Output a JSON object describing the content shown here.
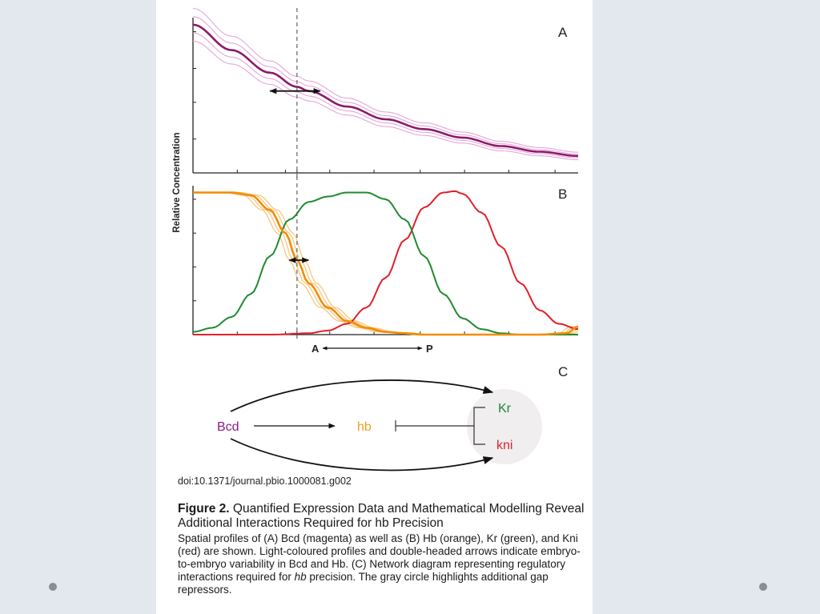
{
  "slide": {
    "background": "#e3e8ee",
    "nav_dots": [
      "left",
      "right"
    ]
  },
  "figure": {
    "doi": "doi:10.1371/journal.pbio.1000081.g002",
    "caption": {
      "label": "Figure 2.",
      "title": "Quantified Expression Data and Mathematical Modelling Reveal Additional Interactions Required for hb Precision",
      "body_parts": [
        "Spatial profiles of (A) Bcd (magenta) as well as (B) Hb (orange), Kr (green), and Kni (red) are shown. Light-coloured profiles and double-headed arrows indicate embryo-to-embryo variability in Bcd and Hb. (C) Network diagram representing regulatory interactions required for ",
        "hb",
        " precision. The gray circle highlights additional gap repressors."
      ]
    },
    "diagram_c": {
      "panel_label": "C",
      "nodes": {
        "bcd": {
          "label": "Bcd",
          "color": "#8b1a8b"
        },
        "hb": {
          "label": "hb",
          "color": "#f0a020"
        },
        "kr": {
          "label": "Kr",
          "color": "#1f8a2e"
        },
        "kni": {
          "label": "kni",
          "color": "#e0202a"
        }
      },
      "edges": [
        {
          "from": "Bcd",
          "to": "hb",
          "type": "activation"
        },
        {
          "from": "Bcd",
          "to": "Kr",
          "type": "activation"
        },
        {
          "from": "Bcd",
          "to": "kni",
          "type": "activation"
        },
        {
          "from": "Kr/kni",
          "to": "hb",
          "type": "repression"
        }
      ],
      "highlight": "gray circle around Kr and kni"
    }
  },
  "chart_data": [
    {
      "type": "line",
      "panel_label": "A",
      "title": "",
      "xlabel": "",
      "ylabel": "Relative Concentration",
      "xlim": [
        0,
        1
      ],
      "ylim": [
        0,
        1.1
      ],
      "grid": false,
      "x_ticks": [
        0,
        0.115,
        0.24,
        0.27,
        0.355,
        0.47,
        0.59,
        0.705,
        0.82,
        0.94
      ],
      "y_ticks": [
        0.24,
        0.5,
        0.74,
        1.0
      ],
      "reference_line_x": 0.27,
      "variability_arrow": {
        "y": 0.58,
        "x_from": 0.2,
        "x_to": 0.33
      },
      "series": [
        {
          "name": "Bcd",
          "color": "#8b1a6b",
          "model": "exponential",
          "x": [
            0,
            0.1,
            0.2,
            0.27,
            0.3,
            0.4,
            0.5,
            0.6,
            0.7,
            0.8,
            0.9,
            1.0
          ],
          "y": [
            1.05,
            0.87,
            0.71,
            0.61,
            0.58,
            0.47,
            0.38,
            0.31,
            0.25,
            0.19,
            0.15,
            0.12
          ]
        },
        {
          "name": "Bcd (embryo variability)",
          "color": "#e4a6d8",
          "x": [
            0,
            1
          ],
          "y": [
            1.05,
            0.12
          ],
          "band": [
            -0.06,
            -0.03,
            0.03,
            0.06
          ]
        }
      ]
    },
    {
      "type": "line",
      "panel_label": "B",
      "title": "",
      "xlabel": "",
      "ylabel": "Relative Concentration",
      "xlim": [
        0,
        1
      ],
      "ylim": [
        0,
        1.1
      ],
      "grid": false,
      "x_ticks": [
        0,
        0.115,
        0.24,
        0.27,
        0.355,
        0.47,
        0.59,
        0.705,
        0.82,
        0.94
      ],
      "y_ticks": [
        0.25,
        0.5,
        0.75,
        1.0
      ],
      "reference_line_x": 0.27,
      "variability_arrow": {
        "y": 0.55,
        "x_from": 0.25,
        "x_to": 0.3
      },
      "axis_annotation": {
        "left": "A",
        "right": "P"
      },
      "series": [
        {
          "name": "Hb",
          "color": "#f28c00",
          "x": [
            0,
            0.05,
            0.1,
            0.15,
            0.2,
            0.24,
            0.27,
            0.3,
            0.35,
            0.4,
            0.45,
            0.5,
            0.55,
            0.6,
            0.7,
            0.8,
            0.9,
            0.97,
            1.0
          ],
          "y": [
            1.05,
            1.05,
            1.05,
            1.03,
            0.92,
            0.75,
            0.55,
            0.38,
            0.2,
            0.1,
            0.05,
            0.02,
            0.01,
            0.0,
            0.0,
            0.0,
            0.0,
            0.01,
            0.06
          ]
        },
        {
          "name": "Hb (embryo variability)",
          "color": "#f7c27a",
          "x_shift": [
            -0.02,
            -0.01,
            0.01,
            0.02
          ]
        },
        {
          "name": "Kr",
          "color": "#1f8a2e",
          "x": [
            0,
            0.05,
            0.1,
            0.15,
            0.2,
            0.25,
            0.3,
            0.35,
            0.4,
            0.45,
            0.5,
            0.55,
            0.6,
            0.65,
            0.7,
            0.75,
            0.8,
            0.85,
            0.9,
            0.95,
            1.0
          ],
          "y": [
            0.02,
            0.05,
            0.13,
            0.3,
            0.58,
            0.85,
            0.98,
            1.02,
            1.05,
            1.05,
            1.0,
            0.85,
            0.58,
            0.3,
            0.12,
            0.04,
            0.01,
            0.0,
            0.0,
            0.0,
            0.0
          ]
        },
        {
          "name": "Kni",
          "color": "#e0202a",
          "x": [
            0,
            0.1,
            0.2,
            0.3,
            0.35,
            0.4,
            0.45,
            0.5,
            0.55,
            0.6,
            0.65,
            0.68,
            0.7,
            0.75,
            0.8,
            0.85,
            0.9,
            0.95,
            1.0
          ],
          "y": [
            0.0,
            0.0,
            0.0,
            0.01,
            0.03,
            0.08,
            0.2,
            0.42,
            0.7,
            0.94,
            1.05,
            1.06,
            1.04,
            0.9,
            0.65,
            0.38,
            0.18,
            0.08,
            0.04
          ]
        }
      ]
    }
  ]
}
